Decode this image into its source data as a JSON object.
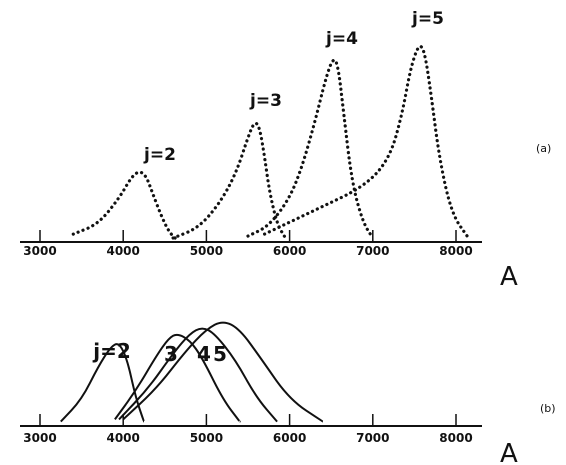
{
  "chart_data": [
    {
      "type": "line",
      "panel_label": "(a)",
      "xlabel": "A",
      "xlim": [
        2700,
        8400
      ],
      "ylim": [
        0,
        1.0
      ],
      "x_ticks": [
        3000,
        4000,
        5000,
        6000,
        7000,
        8000
      ],
      "style": "dotted",
      "series": [
        {
          "name": "j=2",
          "x": [
            3400,
            3700,
            3950,
            4100,
            4200,
            4280,
            4350,
            4450,
            4550,
            4650
          ],
          "y": [
            0.04,
            0.09,
            0.22,
            0.33,
            0.36,
            0.33,
            0.25,
            0.14,
            0.05,
            0.01
          ]
        },
        {
          "name": "j=3",
          "x": [
            4600,
            4900,
            5150,
            5350,
            5500,
            5580,
            5640,
            5700,
            5760,
            5850,
            5950
          ],
          "y": [
            0.02,
            0.07,
            0.19,
            0.34,
            0.53,
            0.61,
            0.58,
            0.43,
            0.25,
            0.09,
            0.02
          ]
        },
        {
          "name": "j=4",
          "x": [
            5500,
            5750,
            6000,
            6150,
            6300,
            6430,
            6520,
            6580,
            6650,
            6750,
            6880,
            7000
          ],
          "y": [
            0.03,
            0.08,
            0.22,
            0.38,
            0.6,
            0.82,
            0.93,
            0.9,
            0.65,
            0.3,
            0.1,
            0.02
          ]
        },
        {
          "name": "j=5",
          "x": [
            5700,
            6300,
            6900,
            7200,
            7350,
            7450,
            7550,
            7620,
            7700,
            7800,
            7950,
            8150
          ],
          "y": [
            0.04,
            0.16,
            0.28,
            0.42,
            0.64,
            0.87,
            1.0,
            0.97,
            0.75,
            0.42,
            0.14,
            0.02
          ]
        }
      ]
    },
    {
      "type": "line",
      "panel_label": "(b)",
      "xlabel": "A",
      "xlim": [
        2700,
        8400
      ],
      "ylim": [
        0,
        0.5
      ],
      "x_ticks": [
        3000,
        4000,
        5000,
        6000,
        7000,
        8000
      ],
      "style": "solid",
      "series": [
        {
          "name": "j=2",
          "x": [
            3250,
            3500,
            3700,
            3850,
            3950,
            4050,
            4150,
            4250
          ],
          "y": [
            0.02,
            0.12,
            0.27,
            0.36,
            0.38,
            0.3,
            0.13,
            0.02
          ]
        },
        {
          "name": "3",
          "x": [
            3900,
            4150,
            4400,
            4550,
            4650,
            4800,
            4950,
            5200,
            5400
          ],
          "y": [
            0.03,
            0.16,
            0.32,
            0.4,
            0.42,
            0.39,
            0.31,
            0.12,
            0.02
          ]
        },
        {
          "name": "4",
          "x": [
            3950,
            4300,
            4600,
            4800,
            4950,
            5100,
            5350,
            5600,
            5850
          ],
          "y": [
            0.03,
            0.17,
            0.33,
            0.42,
            0.45,
            0.42,
            0.3,
            0.13,
            0.02
          ]
        },
        {
          "name": "5",
          "x": [
            4000,
            4400,
            4750,
            5000,
            5200,
            5400,
            5650,
            6000,
            6400
          ],
          "y": [
            0.03,
            0.17,
            0.34,
            0.44,
            0.48,
            0.44,
            0.31,
            0.12,
            0.02
          ]
        }
      ]
    }
  ]
}
